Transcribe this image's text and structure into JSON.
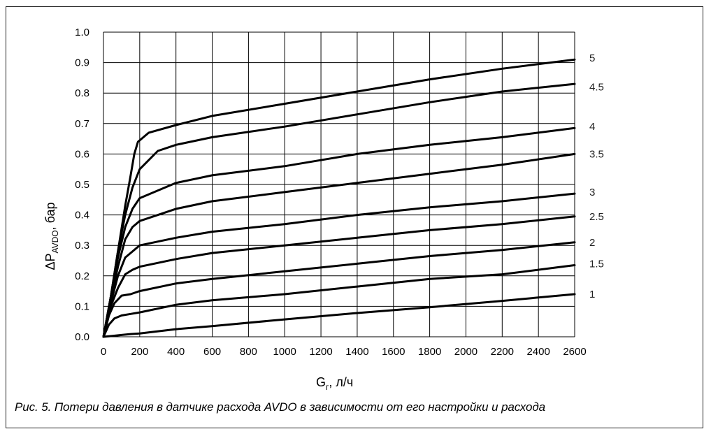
{
  "chart_data": {
    "type": "line",
    "xlabel": "G",
    "xlabel_sub": "г",
    "xlabel_unit": ", л/ч",
    "ylabel_delta": "ΔP",
    "ylabel_sub": "AVDO",
    "ylabel_unit": ", бар",
    "xlim": [
      0,
      2600
    ],
    "ylim": [
      0,
      1.0
    ],
    "x_ticks": [
      0,
      200,
      400,
      600,
      800,
      1000,
      1200,
      1400,
      1600,
      1800,
      2000,
      2200,
      2400,
      2600
    ],
    "y_ticks": [
      "0.0",
      "0.1",
      "0.2",
      "0.3",
      "0.4",
      "0.5",
      "0.6",
      "0.7",
      "0.8",
      "0.9",
      "1.0"
    ],
    "grid": true,
    "series": [
      {
        "name": "1",
        "x": [
          0,
          50,
          100,
          150,
          200,
          400,
          600,
          1000,
          1400,
          1800,
          2200,
          2600
        ],
        "y": [
          0.0,
          0.003,
          0.006,
          0.009,
          0.011,
          0.025,
          0.035,
          0.057,
          0.078,
          0.097,
          0.118,
          0.14
        ]
      },
      {
        "name": "1.5",
        "x": [
          0,
          30,
          60,
          100,
          150,
          200,
          400,
          600,
          1000,
          1400,
          1800,
          2200,
          2600
        ],
        "y": [
          0.0,
          0.04,
          0.06,
          0.07,
          0.075,
          0.08,
          0.105,
          0.12,
          0.14,
          0.165,
          0.19,
          0.205,
          0.235
        ]
      },
      {
        "name": "2",
        "x": [
          0,
          30,
          60,
          100,
          150,
          200,
          400,
          600,
          1000,
          1400,
          1800,
          2200,
          2600
        ],
        "y": [
          0.0,
          0.07,
          0.11,
          0.135,
          0.14,
          0.15,
          0.175,
          0.19,
          0.215,
          0.24,
          0.265,
          0.285,
          0.31
        ]
      },
      {
        "name": "2.5",
        "x": [
          0,
          40,
          80,
          120,
          160,
          200,
          400,
          600,
          1000,
          1400,
          1800,
          2200,
          2600
        ],
        "y": [
          0.0,
          0.1,
          0.16,
          0.205,
          0.22,
          0.23,
          0.255,
          0.275,
          0.3,
          0.325,
          0.35,
          0.37,
          0.395
        ]
      },
      {
        "name": "3",
        "x": [
          0,
          40,
          80,
          120,
          160,
          200,
          400,
          600,
          1000,
          1400,
          1800,
          2200,
          2600
        ],
        "y": [
          0.0,
          0.11,
          0.2,
          0.26,
          0.28,
          0.3,
          0.325,
          0.345,
          0.37,
          0.4,
          0.425,
          0.445,
          0.47
        ]
      },
      {
        "name": "3.5",
        "x": [
          0,
          40,
          80,
          120,
          160,
          200,
          400,
          600,
          1000,
          1400,
          1800,
          2200,
          2600
        ],
        "y": [
          0.0,
          0.12,
          0.23,
          0.32,
          0.36,
          0.38,
          0.42,
          0.445,
          0.475,
          0.505,
          0.535,
          0.565,
          0.6
        ]
      },
      {
        "name": "4",
        "x": [
          0,
          40,
          80,
          120,
          160,
          200,
          400,
          600,
          1000,
          1400,
          1800,
          2200,
          2600
        ],
        "y": [
          0.0,
          0.13,
          0.26,
          0.36,
          0.42,
          0.455,
          0.505,
          0.53,
          0.56,
          0.6,
          0.63,
          0.655,
          0.685
        ]
      },
      {
        "name": "4.5",
        "x": [
          0,
          40,
          80,
          120,
          160,
          200,
          300,
          400,
          600,
          1000,
          1400,
          1800,
          2200,
          2600
        ],
        "y": [
          0.0,
          0.13,
          0.28,
          0.4,
          0.49,
          0.55,
          0.61,
          0.63,
          0.655,
          0.69,
          0.73,
          0.77,
          0.805,
          0.83
        ]
      },
      {
        "name": "5",
        "x": [
          0,
          40,
          80,
          120,
          150,
          170,
          190,
          250,
          400,
          600,
          1000,
          1400,
          1800,
          2200,
          2600
        ],
        "y": [
          0.0,
          0.13,
          0.28,
          0.43,
          0.53,
          0.6,
          0.64,
          0.67,
          0.695,
          0.725,
          0.765,
          0.805,
          0.845,
          0.88,
          0.91
        ]
      }
    ]
  },
  "caption": "Рис. 5. Потери давления в датчике расхода AVDO в зависимости от его настройки и расхода"
}
